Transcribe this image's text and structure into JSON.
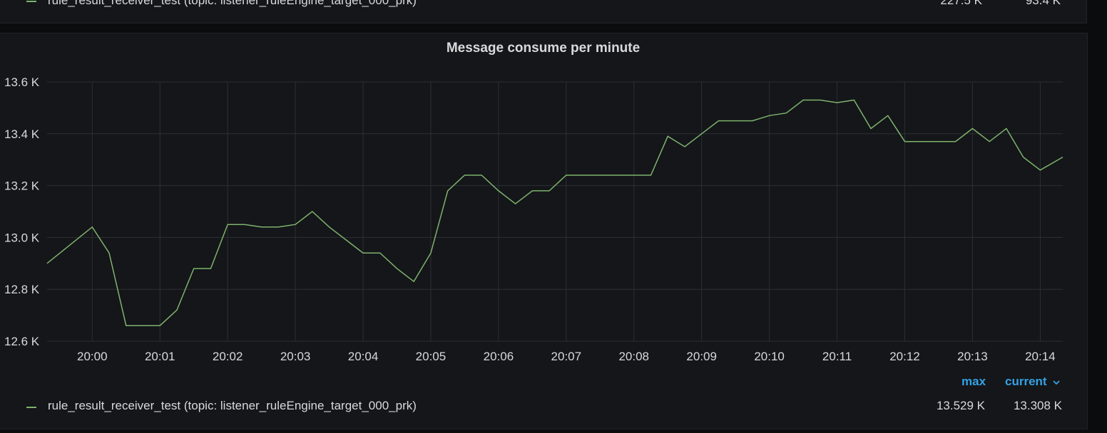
{
  "top_panel": {
    "legend": {
      "name": "rule_result_receiver_test (topic: listener_ruleEngine_target_000_prk)",
      "values": [
        "227.5 K",
        "93.4 K"
      ]
    }
  },
  "panel": {
    "title": "Message consume per minute",
    "legend_headers": {
      "max": "max",
      "current": "current"
    },
    "legend": {
      "name": "rule_result_receiver_test (topic: listener_ruleEngine_target_000_prk)",
      "max": "13.529 K",
      "current": "13.308 K",
      "color": "#7eb26d"
    }
  },
  "chart_data": {
    "type": "line",
    "title": "Message consume per minute",
    "xlabel": "",
    "ylabel": "",
    "x_tick_labels": [
      "20:00",
      "20:01",
      "20:02",
      "20:03",
      "20:04",
      "20:05",
      "20:06",
      "20:07",
      "20:08",
      "20:09",
      "20:10",
      "20:11",
      "20:12",
      "20:13",
      "20:14"
    ],
    "y_tick_labels": [
      "13.6 K",
      "13.4 K",
      "13.2 K",
      "13.0 K",
      "12.8 K",
      "12.6 K"
    ],
    "ylim": [
      12.6,
      13.6
    ],
    "xlim": [
      "19:59:20",
      "20:14:20"
    ],
    "grid": true,
    "series": [
      {
        "name": "rule_result_receiver_test (topic: listener_ruleEngine_target_000_prk)",
        "color": "#7eb26d",
        "x": [
          "19:59:20",
          "20:00:00",
          "20:00:15",
          "20:00:30",
          "20:00:45",
          "20:01:00",
          "20:01:15",
          "20:01:30",
          "20:01:45",
          "20:02:00",
          "20:02:15",
          "20:02:30",
          "20:02:45",
          "20:03:00",
          "20:03:15",
          "20:03:30",
          "20:03:45",
          "20:04:00",
          "20:04:15",
          "20:04:30",
          "20:04:45",
          "20:05:00",
          "20:05:15",
          "20:05:30",
          "20:05:45",
          "20:06:00",
          "20:06:15",
          "20:06:30",
          "20:06:45",
          "20:07:00",
          "20:07:15",
          "20:07:30",
          "20:07:45",
          "20:08:00",
          "20:08:15",
          "20:08:30",
          "20:08:45",
          "20:09:00",
          "20:09:15",
          "20:09:30",
          "20:09:45",
          "20:10:00",
          "20:10:15",
          "20:10:30",
          "20:10:45",
          "20:11:00",
          "20:11:15",
          "20:11:30",
          "20:11:45",
          "20:12:00",
          "20:12:15",
          "20:12:30",
          "20:12:45",
          "20:13:00",
          "20:13:15",
          "20:13:30",
          "20:13:45",
          "20:14:00",
          "20:14:20"
        ],
        "y": [
          12.9,
          13.04,
          12.94,
          12.66,
          12.66,
          12.66,
          12.72,
          12.88,
          12.88,
          13.05,
          13.05,
          13.04,
          13.04,
          13.05,
          13.1,
          13.04,
          12.99,
          12.94,
          12.94,
          12.88,
          12.83,
          12.94,
          13.18,
          13.24,
          13.24,
          13.18,
          13.13,
          13.18,
          13.18,
          13.24,
          13.24,
          13.24,
          13.24,
          13.24,
          13.24,
          13.39,
          13.35,
          13.4,
          13.45,
          13.45,
          13.45,
          13.47,
          13.48,
          13.53,
          13.53,
          13.52,
          13.53,
          13.42,
          13.47,
          13.37,
          13.37,
          13.37,
          13.37,
          13.42,
          13.37,
          13.42,
          13.31,
          13.26,
          13.31
        ]
      }
    ]
  }
}
